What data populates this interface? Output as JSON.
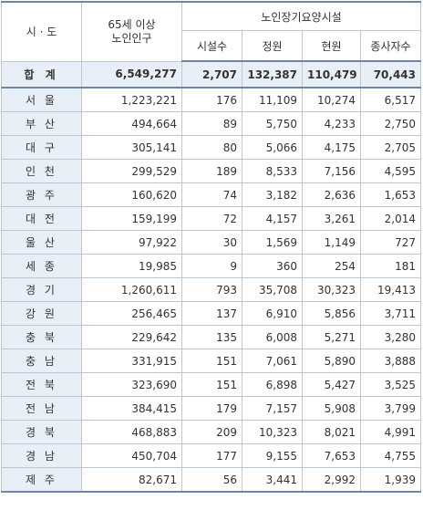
{
  "headers": {
    "region": "시 · 도",
    "elderly_line1": "65세 이상",
    "elderly_line2": "노인인구",
    "facility_group": "노인장기요양시설",
    "facilities": "시설수",
    "capacity": "정원",
    "current": "현원",
    "workers": "종사자수"
  },
  "total": {
    "region": "합 계",
    "elderly": "6,549,277",
    "facilities": "2,707",
    "capacity": "132,387",
    "current": "110,479",
    "workers": "70,443"
  },
  "rows": [
    {
      "region": "서 울",
      "elderly": "1,223,221",
      "facilities": "176",
      "capacity": "11,109",
      "current": "10,274",
      "workers": "6,517"
    },
    {
      "region": "부 산",
      "elderly": "494,664",
      "facilities": "89",
      "capacity": "5,750",
      "current": "4,233",
      "workers": "2,750"
    },
    {
      "region": "대 구",
      "elderly": "305,141",
      "facilities": "80",
      "capacity": "5,066",
      "current": "4,175",
      "workers": "2,705"
    },
    {
      "region": "인 천",
      "elderly": "299,529",
      "facilities": "189",
      "capacity": "8,533",
      "current": "7,156",
      "workers": "4,595"
    },
    {
      "region": "광 주",
      "elderly": "160,620",
      "facilities": "74",
      "capacity": "3,182",
      "current": "2,636",
      "workers": "1,653"
    },
    {
      "region": "대 전",
      "elderly": "159,199",
      "facilities": "72",
      "capacity": "4,157",
      "current": "3,261",
      "workers": "2,014"
    },
    {
      "region": "울 산",
      "elderly": "97,922",
      "facilities": "30",
      "capacity": "1,569",
      "current": "1,149",
      "workers": "727"
    },
    {
      "region": "세 종",
      "elderly": "19,985",
      "facilities": "9",
      "capacity": "360",
      "current": "254",
      "workers": "181"
    },
    {
      "region": "경 기",
      "elderly": "1,260,611",
      "facilities": "793",
      "capacity": "35,708",
      "current": "30,323",
      "workers": "19,413"
    },
    {
      "region": "강 원",
      "elderly": "256,465",
      "facilities": "137",
      "capacity": "6,910",
      "current": "5,856",
      "workers": "3,711"
    },
    {
      "region": "충 북",
      "elderly": "229,642",
      "facilities": "135",
      "capacity": "6,008",
      "current": "5,271",
      "workers": "3,280"
    },
    {
      "region": "충 남",
      "elderly": "331,915",
      "facilities": "151",
      "capacity": "7,061",
      "current": "5,890",
      "workers": "3,888"
    },
    {
      "region": "전 북",
      "elderly": "323,690",
      "facilities": "151",
      "capacity": "6,898",
      "current": "5,427",
      "workers": "3,525"
    },
    {
      "region": "전 남",
      "elderly": "384,415",
      "facilities": "179",
      "capacity": "7,157",
      "current": "5,908",
      "workers": "3,799"
    },
    {
      "region": "경 북",
      "elderly": "468,883",
      "facilities": "209",
      "capacity": "10,323",
      "current": "8,021",
      "workers": "4,991"
    },
    {
      "region": "경 남",
      "elderly": "450,704",
      "facilities": "177",
      "capacity": "9,155",
      "current": "7,653",
      "workers": "4,755"
    },
    {
      "region": "제 주",
      "elderly": "82,671",
      "facilities": "56",
      "capacity": "3,441",
      "current": "2,992",
      "workers": "1,939"
    }
  ]
}
